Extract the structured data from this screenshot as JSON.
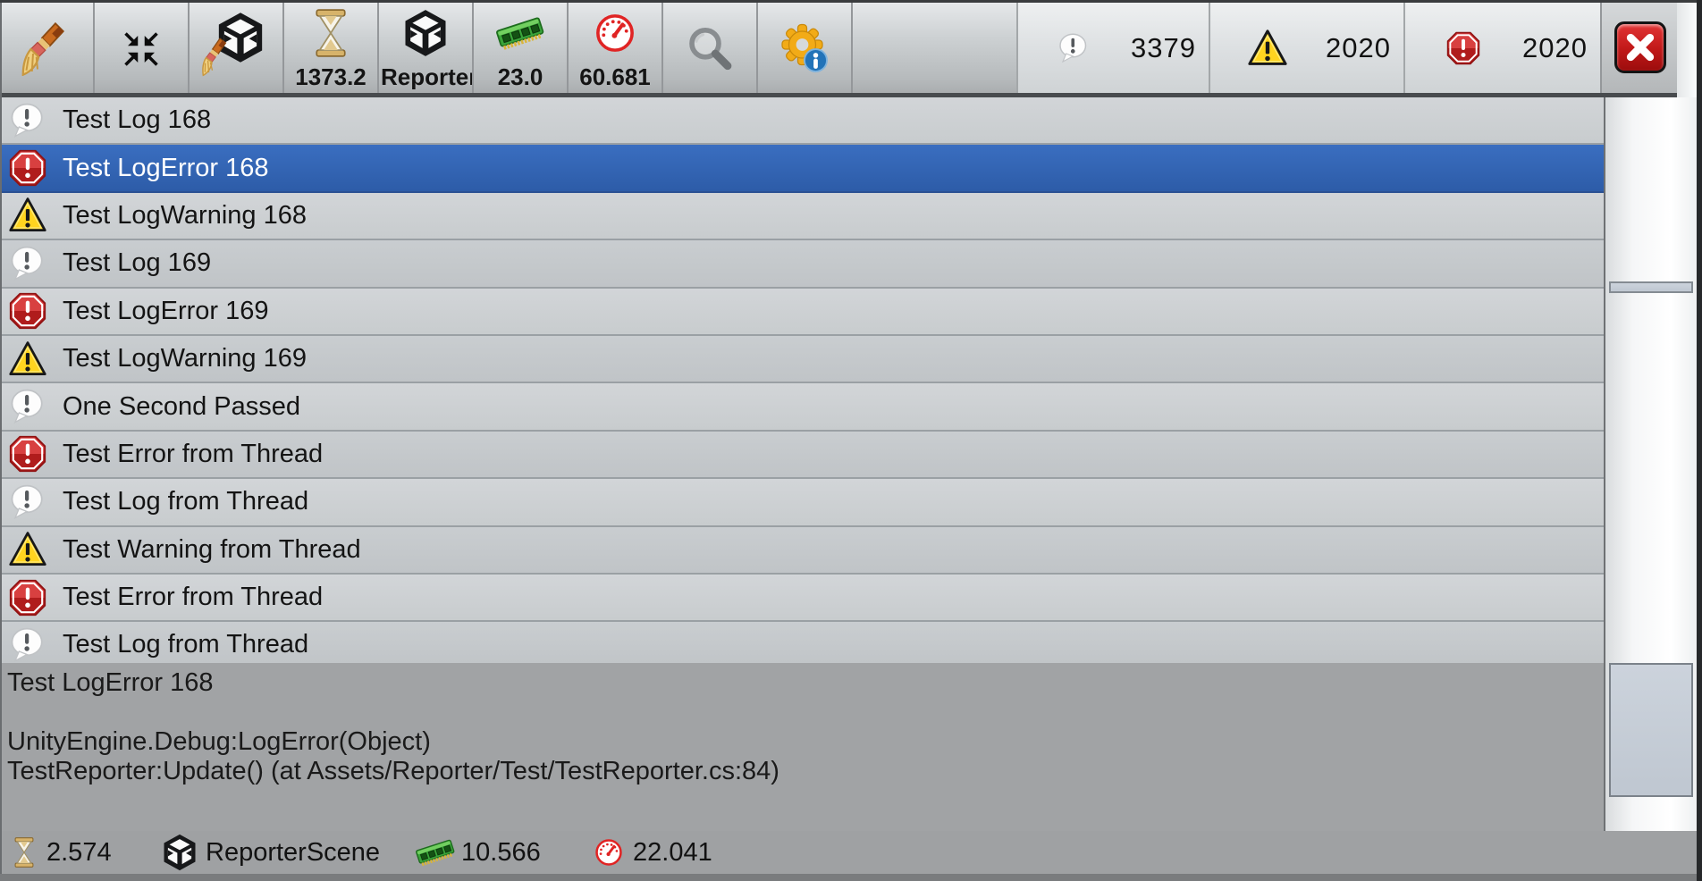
{
  "toolbar": {
    "buttons": [
      {
        "id": "clear",
        "icon": "broom-icon",
        "label": ""
      },
      {
        "id": "shrink",
        "icon": "shrink-icon",
        "label": ""
      },
      {
        "id": "clear-scene",
        "icon": "unity-broom-icon",
        "label": ""
      },
      {
        "id": "time",
        "icon": "hourglass-icon",
        "label": "1373.2"
      },
      {
        "id": "scene",
        "icon": "unity-icon",
        "label": "Reporter"
      },
      {
        "id": "memory",
        "icon": "ram-icon",
        "label": "23.0"
      },
      {
        "id": "fps",
        "icon": "speedometer-icon",
        "label": "60.681"
      },
      {
        "id": "search",
        "icon": "search-icon",
        "label": ""
      },
      {
        "id": "settings",
        "icon": "gear-info-icon",
        "label": ""
      }
    ],
    "counts": {
      "info": "3379",
      "warning": "2020",
      "error": "2020"
    }
  },
  "log_list": {
    "selected_index": 1,
    "items": [
      {
        "type": "info",
        "text": "Test Log 168"
      },
      {
        "type": "error",
        "text": "Test LogError 168"
      },
      {
        "type": "warning",
        "text": "Test LogWarning 168"
      },
      {
        "type": "info",
        "text": "Test Log 169"
      },
      {
        "type": "error",
        "text": "Test LogError 169"
      },
      {
        "type": "warning",
        "text": "Test LogWarning 169"
      },
      {
        "type": "info",
        "text": "One Second Passed"
      },
      {
        "type": "error",
        "text": "Test Error from Thread"
      },
      {
        "type": "info",
        "text": "Test Log from Thread"
      },
      {
        "type": "warning",
        "text": "Test Warning from Thread"
      },
      {
        "type": "error",
        "text": "Test Error from Thread"
      },
      {
        "type": "info",
        "text": "Test Log from Thread"
      }
    ]
  },
  "detail": {
    "lines": [
      "Test LogError 168",
      "",
      "UnityEngine.Debug:LogError(Object)",
      "TestReporter:Update() (at Assets/Reporter/Test/TestReporter.cs:84)"
    ]
  },
  "status_bar": {
    "time": "2.574",
    "scene": "ReporterScene",
    "memory": "10.566",
    "fps": "22.041"
  },
  "icons": {
    "info": "speech-bubble-exclamation",
    "warning": "yellow-triangle-exclamation",
    "error": "red-octagon-exclamation",
    "close": "red-square-x"
  },
  "colors": {
    "selection": "#3264b2",
    "toolbar_top": "#e8eaec",
    "toolbar_bottom": "#aaadaf",
    "detail_bg": "#a1a3a5",
    "error_red": "#c62828",
    "warning_yellow": "#ffd41f"
  }
}
